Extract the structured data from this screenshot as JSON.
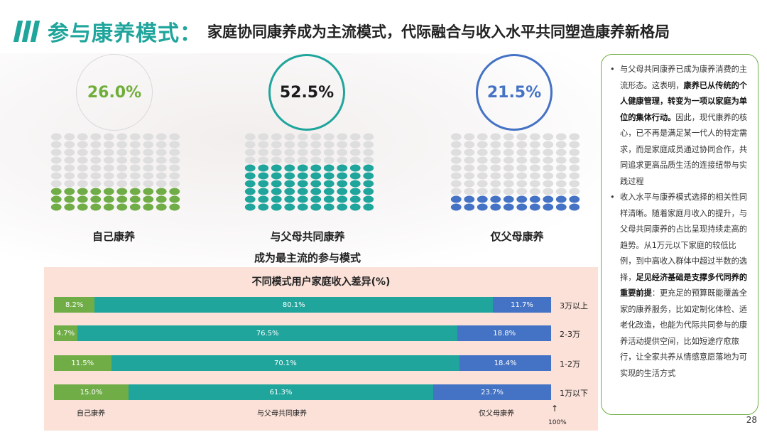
{
  "header": {
    "title_main": "参与康养模式：",
    "title_sub": "家庭协同康养成为主流模式，代际融合与收入水平共同塑造康养新格局"
  },
  "modes": [
    {
      "value": "26.0%",
      "label": "自己康养",
      "color": "#70ad47",
      "filled_rows": 3
    },
    {
      "value": "52.5%",
      "label": "与父母共同康养",
      "note": "成为最主流的参与模式",
      "color": "#1fa59c",
      "filled_rows": 6
    },
    {
      "value": "21.5%",
      "label": "仅父母康养",
      "color": "#4472c4",
      "filled_rows": 2
    }
  ],
  "chart_data": {
    "type": "bar",
    "stacked": true,
    "orientation": "horizontal",
    "title": "不同模式用户家庭收入差异(%)",
    "categories": [
      "3万以上",
      "2-3万",
      "1-2万",
      "1万以下"
    ],
    "series": [
      {
        "name": "自己康养",
        "color": "#70ad47",
        "values": [
          8.2,
          4.7,
          11.5,
          15.0
        ],
        "labels": [
          "8.2%",
          "4.7%",
          "11.5%",
          "15.0%"
        ]
      },
      {
        "name": "与父母共同康养",
        "color": "#1fa59c",
        "values": [
          80.1,
          76.5,
          70.1,
          61.3
        ],
        "labels": [
          "80.1%",
          "76.5%",
          "70.1%",
          "61.3%"
        ]
      },
      {
        "name": "仅父母康养",
        "color": "#4472c4",
        "values": [
          11.7,
          18.8,
          18.4,
          23.7
        ],
        "labels": [
          "11.7%",
          "18.8%",
          "18.4%",
          "23.7%"
        ]
      }
    ],
    "xlim": [
      0,
      100
    ],
    "marker_label": "100%",
    "marker_arrow": "↑"
  },
  "sidebar": {
    "bullets": [
      [
        {
          "t": "与父母共同康养已成为康养消费的主流形态。这表明，",
          "b": false
        },
        {
          "t": "康养已从传统的个人健康管理，转变为一项以家庭为单位的集体行动。",
          "b": true
        },
        {
          "t": "因此，现代康养的核心，已不再是满足某一代人的特定需求，而是家庭成员通过协同合作，共同追求更高品质生活的连接纽带与实践过程",
          "b": false
        }
      ],
      [
        {
          "t": "收入水平与康养模式选择的相关性同样清晰。随着家庭月收入的提升，与父母共同康养的占比呈现持续走高的趋势。从1万元以下家庭的较低比例，到中高收入群体中超过半数的选择，",
          "b": false
        },
        {
          "t": "足见经济基础是支撑多代同养的重要前提",
          "b": true
        },
        {
          "t": "：更充足的预算既能覆盖全家的康养服务，比如定制化体检、适老化改造，也能为代际共同参与的康养活动提供空间，比如短途疗愈旅行，让全家共养从情感意愿落地为可实现的生活方式",
          "b": false
        }
      ]
    ]
  },
  "page_number": "28"
}
